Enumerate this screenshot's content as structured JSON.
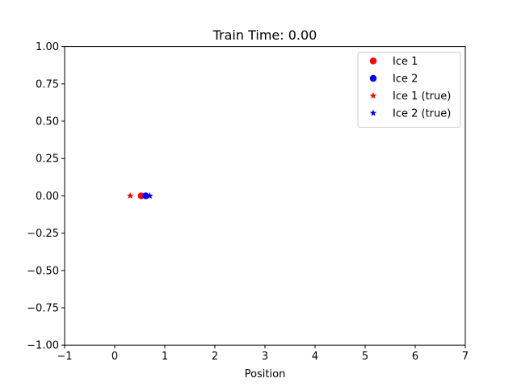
{
  "chart_data": {
    "type": "scatter",
    "title": "Train Time: 0.00",
    "xlabel": "Position",
    "ylabel": "",
    "xlim": [
      -1,
      7
    ],
    "ylim": [
      -1,
      1
    ],
    "xticks": [
      -1,
      0,
      1,
      2,
      3,
      4,
      5,
      6,
      7
    ],
    "yticks": [
      -1.0,
      -0.75,
      -0.5,
      -0.25,
      0.0,
      0.25,
      0.5,
      0.75,
      1.0
    ],
    "xtick_labels": [
      "−1",
      "0",
      "1",
      "2",
      "3",
      "4",
      "5",
      "6",
      "7"
    ],
    "ytick_labels": [
      "−1.00",
      "−0.75",
      "−0.50",
      "−0.25",
      "0.00",
      "0.25",
      "0.50",
      "0.75",
      "1.00"
    ],
    "grid": false,
    "legend_position": "top-right",
    "series": [
      {
        "name": "Ice 1",
        "marker": "circle",
        "color": "#ff0000",
        "x": [
          0.53
        ],
        "y": [
          0.0
        ]
      },
      {
        "name": "Ice 2",
        "marker": "circle",
        "color": "#0000ff",
        "x": [
          0.62
        ],
        "y": [
          0.0
        ]
      },
      {
        "name": "Ice 1 (true)",
        "marker": "star",
        "color": "#ff0000",
        "x": [
          0.31
        ],
        "y": [
          0.0
        ]
      },
      {
        "name": "Ice 2 (true)",
        "marker": "star",
        "color": "#0000ff",
        "x": [
          0.7
        ],
        "y": [
          0.0
        ]
      }
    ]
  }
}
